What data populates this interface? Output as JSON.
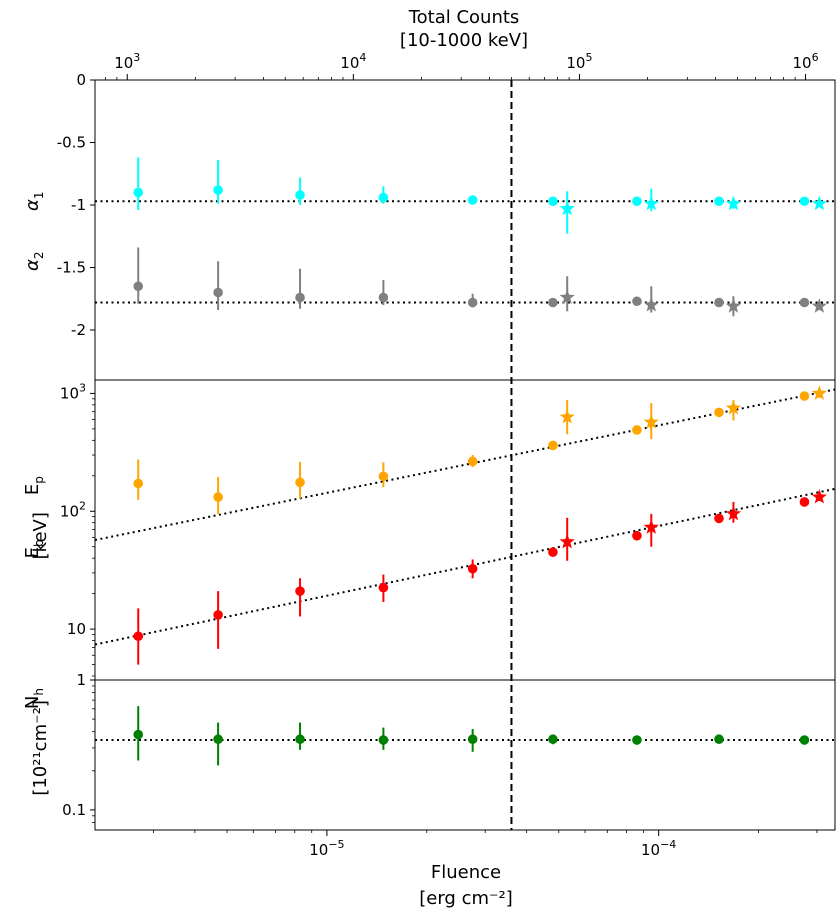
{
  "chart_data": {
    "type": "scatter",
    "x_axis": {
      "label": "Fluence",
      "unit": "[erg cm⁻²]",
      "scale": "log",
      "range": [
        2e-06,
        0.00034
      ],
      "ticks": [
        {
          "value": 1e-05,
          "base": "10",
          "exp": "−5"
        },
        {
          "value": 0.0001,
          "base": "10",
          "exp": "−4"
        }
      ]
    },
    "top_axis": {
      "label": "Total Counts",
      "unit": "[10-1000 keV]",
      "scale": "log",
      "range": [
        720,
        1350000.0
      ],
      "ticks": [
        {
          "value": 1000.0,
          "base": "10",
          "exp": "3"
        },
        {
          "value": 10000.0,
          "base": "10",
          "exp": "4"
        },
        {
          "value": 100000.0,
          "base": "10",
          "exp": "5"
        },
        {
          "value": 1000000.0,
          "base": "10",
          "exp": "6"
        }
      ]
    },
    "vline": {
      "value": 3.6e-05,
      "style": "dashed",
      "color": "#000000"
    },
    "panels": [
      {
        "id": "alpha",
        "scale": "linear",
        "ylim": [
          -2.4,
          0
        ],
        "ticks": [
          {
            "value": 0,
            "label": "0"
          },
          {
            "value": -0.5,
            "label": "-0.5"
          },
          {
            "value": -1,
            "label": "-1"
          },
          {
            "value": -1.5,
            "label": "-1.5"
          },
          {
            "value": -2,
            "label": "-2"
          }
        ],
        "ylabels": [
          {
            "sym": "α",
            "sub": "1",
            "y": -0.97
          },
          {
            "sym": "α",
            "sub": "2",
            "y": -1.45
          }
        ],
        "series": [
          {
            "name": "alpha1",
            "color": "#00ffff",
            "marker": "circle",
            "points": [
              {
                "x": 2.7e-06,
                "y": -0.9,
                "lo": -1.04,
                "hi": -0.62
              },
              {
                "x": 4.7e-06,
                "y": -0.88,
                "lo": -0.99,
                "hi": -0.64
              },
              {
                "x": 8.3e-06,
                "y": -0.92,
                "lo": -1.0,
                "hi": -0.78
              },
              {
                "x": 1.48e-05,
                "y": -0.94,
                "lo": -0.99,
                "hi": -0.85
              },
              {
                "x": 2.75e-05,
                "y": -0.96,
                "lo": -0.99,
                "hi": -0.93
              },
              {
                "x": 4.8e-05,
                "y": -0.97,
                "lo": -0.99,
                "hi": -0.96
              },
              {
                "x": 8.6e-05,
                "y": -0.97,
                "lo": -0.98,
                "hi": -0.96
              },
              {
                "x": 0.000152,
                "y": -0.97,
                "lo": -0.98,
                "hi": -0.96
              },
              {
                "x": 0.000275,
                "y": -0.97,
                "lo": -0.975,
                "hi": -0.965
              }
            ]
          },
          {
            "name": "alpha1 (star)",
            "color": "#00ffff",
            "marker": "star",
            "points": [
              {
                "x": 5.3e-05,
                "y": -1.03,
                "lo": -1.23,
                "hi": -0.89
              },
              {
                "x": 9.5e-05,
                "y": -0.99,
                "lo": -1.05,
                "hi": -0.87
              },
              {
                "x": 0.000168,
                "y": -0.99,
                "lo": -1.03,
                "hi": -0.95
              },
              {
                "x": 0.000305,
                "y": -0.99,
                "lo": -1.01,
                "hi": -0.97
              }
            ]
          },
          {
            "name": "alpha2",
            "color": "#808080",
            "marker": "circle",
            "points": [
              {
                "x": 2.7e-06,
                "y": -1.65,
                "lo": -1.79,
                "hi": -1.34
              },
              {
                "x": 4.7e-06,
                "y": -1.7,
                "lo": -1.84,
                "hi": -1.45
              },
              {
                "x": 8.3e-06,
                "y": -1.74,
                "lo": -1.83,
                "hi": -1.51
              },
              {
                "x": 1.48e-05,
                "y": -1.74,
                "lo": -1.8,
                "hi": -1.6
              },
              {
                "x": 2.75e-05,
                "y": -1.78,
                "lo": -1.82,
                "hi": -1.71
              },
              {
                "x": 4.8e-05,
                "y": -1.78,
                "lo": -1.8,
                "hi": -1.75
              },
              {
                "x": 8.6e-05,
                "y": -1.77,
                "lo": -1.79,
                "hi": -1.75
              },
              {
                "x": 0.000152,
                "y": -1.78,
                "lo": -1.79,
                "hi": -1.77
              },
              {
                "x": 0.000275,
                "y": -1.78,
                "lo": -1.785,
                "hi": -1.775
              }
            ]
          },
          {
            "name": "alpha2 (star)",
            "color": "#808080",
            "marker": "star",
            "points": [
              {
                "x": 5.3e-05,
                "y": -1.74,
                "lo": -1.85,
                "hi": -1.57
              },
              {
                "x": 9.5e-05,
                "y": -1.8,
                "lo": -1.86,
                "hi": -1.65
              },
              {
                "x": 0.000168,
                "y": -1.81,
                "lo": -1.89,
                "hi": -1.73
              },
              {
                "x": 0.000305,
                "y": -1.81,
                "lo": -1.84,
                "hi": -1.78
              }
            ]
          }
        ],
        "fits": [
          {
            "name": "alpha1 mean",
            "x": [
              2e-06,
              0.00034
            ],
            "y": [
              -0.97,
              -0.97
            ]
          },
          {
            "name": "alpha2 mean",
            "x": [
              2e-06,
              0.00034
            ],
            "y": [
              -1.78,
              -1.78
            ]
          }
        ]
      },
      {
        "id": "energy",
        "scale": "log",
        "ylim": [
          3.7,
          1300
        ],
        "ticks": [
          {
            "value": 10,
            "label": "10"
          },
          {
            "value": 100,
            "base": "10",
            "exp": "2"
          },
          {
            "value": 1000,
            "base": "10",
            "exp": "3"
          }
        ],
        "ylabels": [
          {
            "sym": "E",
            "sub": "p",
            "y": 165
          },
          {
            "sym": "E",
            "sub": "b",
            "y": 48
          },
          {
            "text": "[keV]",
            "y": 62
          }
        ],
        "series": [
          {
            "name": "Ep",
            "color": "#ffa500",
            "marker": "circle",
            "points": [
              {
                "x": 2.7e-06,
                "y": 172,
                "lo": 125,
                "hi": 275
              },
              {
                "x": 4.7e-06,
                "y": 132,
                "lo": 95,
                "hi": 195
              },
              {
                "x": 8.3e-06,
                "y": 176,
                "lo": 128,
                "hi": 262
              },
              {
                "x": 1.48e-05,
                "y": 198,
                "lo": 160,
                "hi": 260
              },
              {
                "x": 2.75e-05,
                "y": 265,
                "lo": 238,
                "hi": 300
              },
              {
                "x": 4.8e-05,
                "y": 362,
                "lo": 345,
                "hi": 380
              },
              {
                "x": 8.6e-05,
                "y": 490,
                "lo": 470,
                "hi": 510
              },
              {
                "x": 0.000152,
                "y": 690,
                "lo": 665,
                "hi": 715
              },
              {
                "x": 0.000275,
                "y": 950,
                "lo": 920,
                "hi": 980
              }
            ]
          },
          {
            "name": "Ep (star)",
            "color": "#ffa500",
            "marker": "star",
            "points": [
              {
                "x": 5.3e-05,
                "y": 630,
                "lo": 450,
                "hi": 880
              },
              {
                "x": 9.5e-05,
                "y": 570,
                "lo": 410,
                "hi": 830
              },
              {
                "x": 0.000168,
                "y": 750,
                "lo": 590,
                "hi": 880
              },
              {
                "x": 0.000305,
                "y": 1000,
                "lo": 920,
                "hi": 1080
              }
            ]
          },
          {
            "name": "Eb",
            "color": "#ff0000",
            "marker": "circle",
            "points": [
              {
                "x": 2.7e-06,
                "y": 8.7,
                "lo": 5.0,
                "hi": 15.0
              },
              {
                "x": 4.7e-06,
                "y": 13.2,
                "lo": 6.8,
                "hi": 21.0
              },
              {
                "x": 8.3e-06,
                "y": 21.0,
                "lo": 12.8,
                "hi": 27.0
              },
              {
                "x": 1.48e-05,
                "y": 22.5,
                "lo": 17.0,
                "hi": 29.0
              },
              {
                "x": 2.75e-05,
                "y": 32.5,
                "lo": 27.0,
                "hi": 39.0
              },
              {
                "x": 4.8e-05,
                "y": 45.0,
                "lo": 43.0,
                "hi": 48.0
              },
              {
                "x": 8.6e-05,
                "y": 62.0,
                "lo": 58.0,
                "hi": 66.0
              },
              {
                "x": 0.000152,
                "y": 87.0,
                "lo": 82.0,
                "hi": 92.0
              },
              {
                "x": 0.000275,
                "y": 120.0,
                "lo": 115.0,
                "hi": 125.0
              }
            ]
          },
          {
            "name": "Eb (star)",
            "color": "#ff0000",
            "marker": "star",
            "points": [
              {
                "x": 5.3e-05,
                "y": 55.0,
                "lo": 38.0,
                "hi": 88.0
              },
              {
                "x": 9.5e-05,
                "y": 73.0,
                "lo": 50.0,
                "hi": 95.0
              },
              {
                "x": 0.000168,
                "y": 95.0,
                "lo": 80.0,
                "hi": 120.0
              },
              {
                "x": 0.000305,
                "y": 132.0,
                "lo": 122.0,
                "hi": 145.0
              }
            ]
          }
        ],
        "fits": [
          {
            "name": "Ep fit",
            "x": [
              2e-06,
              0.00034
            ],
            "y": [
              57,
              1080
            ]
          },
          {
            "name": "Eb fit",
            "x": [
              2e-06,
              0.00034
            ],
            "y": [
              7.4,
              155
            ]
          }
        ]
      },
      {
        "id": "nh",
        "scale": "log",
        "ylim": [
          0.07,
          1.0
        ],
        "ticks": [
          {
            "value": 0.1,
            "label": "0.1"
          },
          {
            "value": 1,
            "label": "1"
          }
        ],
        "ylabels": [
          {
            "sym": "N",
            "sub": "h",
            "y": 0.72
          },
          {
            "text": "[10²¹cm⁻²]",
            "y": 0.3
          }
        ],
        "series": [
          {
            "name": "Nh",
            "color": "#008000",
            "marker": "circle",
            "points": [
              {
                "x": 2.7e-06,
                "y": 0.38,
                "lo": 0.24,
                "hi": 0.63
              },
              {
                "x": 4.7e-06,
                "y": 0.35,
                "lo": 0.22,
                "hi": 0.47
              },
              {
                "x": 8.3e-06,
                "y": 0.35,
                "lo": 0.29,
                "hi": 0.47
              },
              {
                "x": 1.48e-05,
                "y": 0.345,
                "lo": 0.29,
                "hi": 0.43
              },
              {
                "x": 2.75e-05,
                "y": 0.35,
                "lo": 0.28,
                "hi": 0.42
              },
              {
                "x": 4.8e-05,
                "y": 0.35,
                "lo": 0.32,
                "hi": 0.38
              },
              {
                "x": 8.6e-05,
                "y": 0.345,
                "lo": 0.32,
                "hi": 0.37
              },
              {
                "x": 0.000152,
                "y": 0.35,
                "lo": 0.33,
                "hi": 0.37
              },
              {
                "x": 0.000275,
                "y": 0.345,
                "lo": 0.33,
                "hi": 0.36
              }
            ]
          }
        ],
        "fits": [
          {
            "name": "Nh mean",
            "x": [
              2e-06,
              0.00034
            ],
            "y": [
              0.345,
              0.345
            ]
          }
        ]
      }
    ]
  }
}
